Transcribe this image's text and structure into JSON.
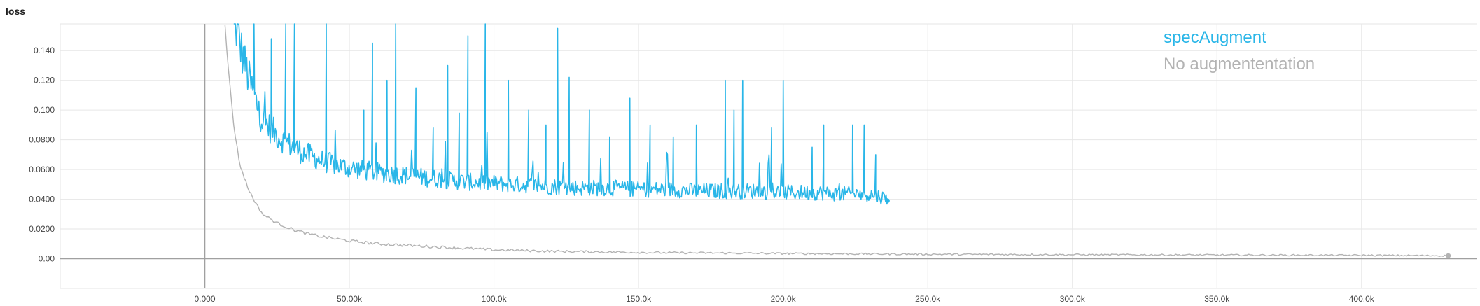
{
  "chart_data": {
    "type": "line",
    "title": "loss",
    "xlabel": "",
    "ylabel": "",
    "xlim": [
      -50000,
      440000
    ],
    "ylim": [
      -0.02,
      0.158
    ],
    "grid": true,
    "legend_position": "top-right",
    "x_ticks": [
      0,
      50000,
      100000,
      150000,
      200000,
      250000,
      300000,
      350000,
      400000
    ],
    "x_tick_labels": [
      "0.000",
      "50.00k",
      "100.0k",
      "150.0k",
      "200.0k",
      "250.0k",
      "300.0k",
      "350.0k",
      "400.0k"
    ],
    "y_ticks": [
      0,
      0.02,
      0.04,
      0.06,
      0.08,
      0.1,
      0.12,
      0.14
    ],
    "y_tick_labels": [
      "0.00",
      "0.0200",
      "0.0400",
      "0.0600",
      "0.0800",
      "0.100",
      "0.120",
      "0.140"
    ],
    "series": [
      {
        "name": "specAugment",
        "color": "#29b6e8",
        "x": [
          10000,
          12000,
          15000,
          18000,
          20000,
          25000,
          30000,
          35000,
          40000,
          45000,
          50000,
          60000,
          70000,
          80000,
          90000,
          100000,
          110000,
          120000,
          130000,
          140000,
          150000,
          160000,
          170000,
          180000,
          190000,
          200000,
          210000,
          220000,
          230000,
          236000
        ],
        "y": [
          0.158,
          0.14,
          0.118,
          0.1,
          0.09,
          0.08,
          0.073,
          0.068,
          0.064,
          0.061,
          0.059,
          0.056,
          0.054,
          0.052,
          0.05,
          0.049,
          0.048,
          0.047,
          0.046,
          0.046,
          0.045,
          0.045,
          0.044,
          0.044,
          0.044,
          0.043,
          0.043,
          0.042,
          0.042,
          0.039
        ],
        "spikes": [
          [
            17000,
            0.158
          ],
          [
            23000,
            0.148
          ],
          [
            28000,
            0.158
          ],
          [
            31000,
            0.158
          ],
          [
            42000,
            0.158
          ],
          [
            55000,
            0.1
          ],
          [
            58000,
            0.145
          ],
          [
            63000,
            0.12
          ],
          [
            66000,
            0.158
          ],
          [
            73000,
            0.115
          ],
          [
            79000,
            0.088
          ],
          [
            84000,
            0.13
          ],
          [
            88000,
            0.098
          ],
          [
            91000,
            0.15
          ],
          [
            97000,
            0.158
          ],
          [
            105000,
            0.12
          ],
          [
            112000,
            0.1
          ],
          [
            118000,
            0.09
          ],
          [
            122000,
            0.155
          ],
          [
            126000,
            0.122
          ],
          [
            133000,
            0.1
          ],
          [
            140000,
            0.082
          ],
          [
            147000,
            0.108
          ],
          [
            154000,
            0.09
          ],
          [
            162000,
            0.082
          ],
          [
            170000,
            0.09
          ],
          [
            180000,
            0.12
          ],
          [
            183000,
            0.1
          ],
          [
            186000,
            0.12
          ],
          [
            196000,
            0.088
          ],
          [
            200000,
            0.12
          ],
          [
            210000,
            0.075
          ],
          [
            214000,
            0.09
          ],
          [
            224000,
            0.09
          ],
          [
            228000,
            0.09
          ],
          [
            232000,
            0.07
          ]
        ]
      },
      {
        "name": "No augmententation",
        "color": "#b3b3b3",
        "x": [
          7000,
          8000,
          9000,
          10000,
          12000,
          15000,
          18000,
          20000,
          25000,
          30000,
          35000,
          40000,
          50000,
          60000,
          70000,
          80000,
          90000,
          100000,
          120000,
          140000,
          160000,
          180000,
          200000,
          250000,
          300000,
          350000,
          400000,
          430000
        ],
        "y": [
          0.158,
          0.13,
          0.11,
          0.09,
          0.064,
          0.047,
          0.036,
          0.03,
          0.024,
          0.02,
          0.017,
          0.015,
          0.012,
          0.01,
          0.009,
          0.008,
          0.007,
          0.006,
          0.005,
          0.0045,
          0.004,
          0.0038,
          0.0035,
          0.003,
          0.0027,
          0.0025,
          0.0023,
          0.002
        ]
      }
    ]
  }
}
